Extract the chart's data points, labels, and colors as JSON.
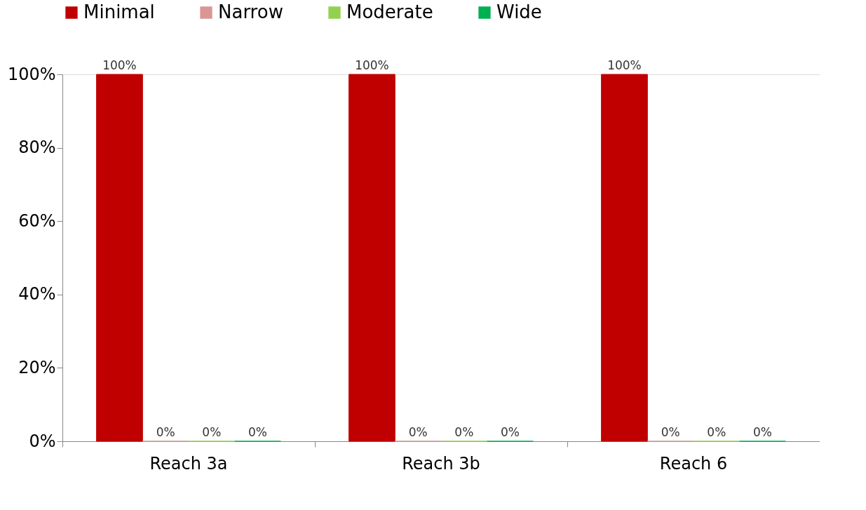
{
  "chart_data": {
    "type": "bar",
    "categories": [
      "Reach 3a",
      "Reach 3b",
      "Reach 6"
    ],
    "series": [
      {
        "name": "Minimal",
        "color": "#c00000",
        "values": [
          100,
          100,
          100
        ],
        "value_labels": [
          "100%",
          "100%",
          "100%"
        ]
      },
      {
        "name": "Narrow",
        "color": "#d99694",
        "values": [
          0,
          0,
          0
        ],
        "value_labels": [
          "0%",
          "0%",
          "0%"
        ]
      },
      {
        "name": "Moderate",
        "color": "#92d050",
        "values": [
          0,
          0,
          0
        ],
        "value_labels": [
          "0%",
          "0%",
          "0%"
        ]
      },
      {
        "name": "Wide",
        "color": "#00b050",
        "values": [
          0,
          0,
          0
        ],
        "value_labels": [
          "0%",
          "0%",
          "0%"
        ]
      }
    ],
    "ylim": [
      0,
      100
    ],
    "yticks": [
      {
        "value": 0,
        "label": "0%"
      },
      {
        "value": 20,
        "label": "20%"
      },
      {
        "value": 40,
        "label": "40%"
      },
      {
        "value": 60,
        "label": "60%"
      },
      {
        "value": 80,
        "label": "80%"
      },
      {
        "value": 100,
        "label": "100%"
      }
    ],
    "grid": false,
    "legend": "top"
  }
}
